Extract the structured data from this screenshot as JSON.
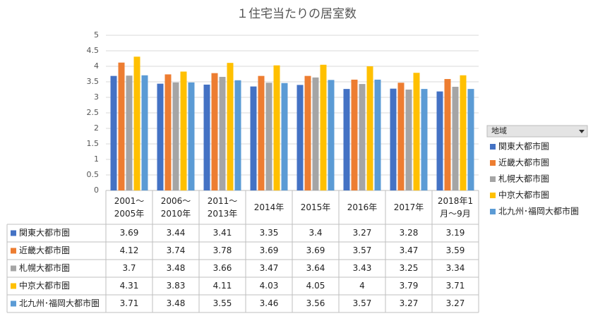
{
  "chart_data": {
    "type": "bar",
    "title": "１住宅当たりの居室数",
    "categories": [
      "2001～\n2005年",
      "2006～\n2010年",
      "2011～\n2013年",
      "2014年",
      "2015年",
      "2016年",
      "2017年",
      "2018年1\n月～9月"
    ],
    "series": [
      {
        "name": "関東大都市圏",
        "color": "#4472c4",
        "values": [
          3.69,
          3.44,
          3.41,
          3.35,
          3.4,
          3.27,
          3.28,
          3.19
        ]
      },
      {
        "name": "近畿大都市圏",
        "color": "#ed7d31",
        "values": [
          4.12,
          3.74,
          3.78,
          3.69,
          3.69,
          3.57,
          3.47,
          3.59
        ]
      },
      {
        "name": "札幌大都市圏",
        "color": "#a5a5a5",
        "values": [
          3.7,
          3.48,
          3.66,
          3.47,
          3.64,
          3.43,
          3.25,
          3.34
        ]
      },
      {
        "name": "中京大都市圏",
        "color": "#ffc000",
        "values": [
          4.31,
          3.83,
          4.11,
          4.03,
          4.05,
          4,
          3.79,
          3.71
        ]
      },
      {
        "name": "北九州･福岡大都市圏",
        "color": "#5b9bd5",
        "values": [
          3.71,
          3.48,
          3.55,
          3.46,
          3.56,
          3.57,
          3.27,
          3.27
        ]
      }
    ],
    "legend_title": "地域",
    "ylim": [
      0,
      5
    ],
    "yticks": [
      0,
      0.5,
      1,
      1.5,
      2,
      2.5,
      3,
      3.5,
      4,
      4.5,
      5
    ],
    "grid": true
  }
}
